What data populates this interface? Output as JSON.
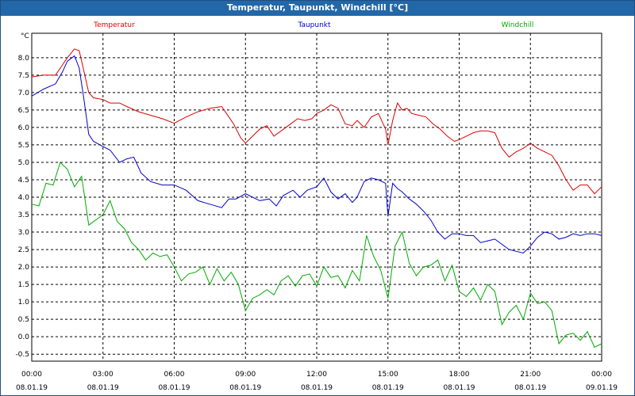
{
  "window": {
    "title": "Temperatur, Taupunkt, Windchill [°C]"
  },
  "chart_data": {
    "type": "line",
    "title": "Temperatur, Taupunkt, Windchill [°C]",
    "ylabel": "°C",
    "xlabel": "",
    "ylim": [
      -0.7,
      8.7
    ],
    "xlim_hours": [
      0,
      24
    ],
    "grid": true,
    "legend_position": "top",
    "y_ticks": [
      "8.0",
      "7.5",
      "7.0",
      "6.5",
      "6.0",
      "5.5",
      "5.0",
      "4.5",
      "4.0",
      "3.5",
      "3.0",
      "2.5",
      "2.0",
      "1.5",
      "1.0",
      "0.5",
      "0.0",
      "-0.5"
    ],
    "x_ticks": [
      {
        "time": "00:00",
        "date": "08.01.19"
      },
      {
        "time": "03:00",
        "date": "08.01.19"
      },
      {
        "time": "06:00",
        "date": "08.01.19"
      },
      {
        "time": "09:00",
        "date": "08.01.19"
      },
      {
        "time": "12:00",
        "date": "08.01.19"
      },
      {
        "time": "15:00",
        "date": "08.01.19"
      },
      {
        "time": "18:00",
        "date": "08.01.19"
      },
      {
        "time": "21:00",
        "date": "08.01.19"
      },
      {
        "time": "00:00",
        "date": "09.01.19"
      }
    ],
    "series": [
      {
        "name": "Temperatur",
        "color": "#dd0000",
        "x": [
          0,
          0.5,
          1,
          1.3,
          1.5,
          1.8,
          2,
          2.2,
          2.4,
          2.6,
          3,
          3.3,
          3.7,
          4,
          4.5,
          5,
          5.5,
          6,
          6.5,
          7,
          7.5,
          8,
          8.2,
          8.5,
          8.8,
          9,
          9.3,
          9.6,
          9.9,
          10.2,
          10.5,
          10.8,
          11,
          11.2,
          11.5,
          11.8,
          12,
          12.3,
          12.6,
          12.9,
          13.2,
          13.5,
          13.7,
          14,
          14.3,
          14.6,
          14.9,
          15,
          15.2,
          15.4,
          15.6,
          15.8,
          16,
          16.3,
          16.6,
          16.9,
          17.2,
          17.5,
          17.8,
          18,
          18.3,
          18.6,
          18.9,
          19.2,
          19.5,
          19.8,
          20.1,
          20.4,
          20.7,
          21,
          21.3,
          21.6,
          21.9,
          22.2,
          22.5,
          22.8,
          23.1,
          23.4,
          23.7,
          24
        ],
        "values": [
          7.45,
          7.5,
          7.5,
          7.8,
          8.0,
          8.25,
          8.2,
          7.6,
          7.0,
          6.85,
          6.8,
          6.7,
          6.7,
          6.6,
          6.45,
          6.35,
          6.25,
          6.12,
          6.3,
          6.45,
          6.55,
          6.6,
          6.4,
          6.1,
          5.7,
          5.55,
          5.75,
          5.95,
          6.05,
          5.75,
          5.9,
          6.05,
          6.15,
          6.25,
          6.2,
          6.25,
          6.4,
          6.5,
          6.65,
          6.55,
          6.1,
          6.05,
          6.2,
          6.0,
          6.3,
          6.4,
          5.95,
          5.5,
          6.2,
          6.7,
          6.5,
          6.55,
          6.4,
          6.35,
          6.3,
          6.1,
          5.95,
          5.75,
          5.6,
          5.65,
          5.75,
          5.85,
          5.9,
          5.9,
          5.85,
          5.4,
          5.15,
          5.3,
          5.4,
          5.55,
          5.4,
          5.3,
          5.2,
          4.9,
          4.5,
          4.2,
          4.35,
          4.35,
          4.1,
          4.3
        ]
      },
      {
        "name": "Taupunkt",
        "color": "#0000cc",
        "x": [
          0,
          0.5,
          1,
          1.3,
          1.5,
          1.8,
          2,
          2.2,
          2.4,
          2.6,
          3,
          3.3,
          3.7,
          4,
          4.3,
          4.6,
          5,
          5.5,
          6,
          6.5,
          7,
          7.5,
          8,
          8.3,
          8.6,
          9,
          9.3,
          9.6,
          10,
          10.3,
          10.6,
          11,
          11.3,
          11.6,
          12,
          12.3,
          12.6,
          12.9,
          13.2,
          13.5,
          13.7,
          14,
          14.3,
          14.6,
          14.9,
          15,
          15.2,
          15.4,
          15.6,
          15.9,
          16.2,
          16.5,
          16.8,
          17.1,
          17.4,
          17.7,
          18,
          18.3,
          18.6,
          18.9,
          19.2,
          19.5,
          19.8,
          20.1,
          20.4,
          20.7,
          21,
          21.3,
          21.6,
          21.9,
          22.2,
          22.5,
          22.8,
          23.1,
          23.4,
          23.7,
          24
        ],
        "values": [
          6.9,
          7.1,
          7.25,
          7.6,
          7.9,
          8.05,
          7.7,
          6.8,
          5.8,
          5.6,
          5.45,
          5.35,
          5.0,
          5.1,
          5.15,
          4.7,
          4.45,
          4.35,
          4.35,
          4.2,
          3.9,
          3.8,
          3.7,
          3.95,
          3.95,
          4.1,
          4.0,
          3.9,
          3.95,
          3.75,
          4.05,
          4.2,
          4.0,
          4.2,
          4.3,
          4.55,
          4.15,
          3.95,
          4.1,
          3.85,
          4.0,
          4.45,
          4.55,
          4.5,
          4.4,
          3.45,
          4.4,
          4.25,
          4.15,
          3.95,
          3.8,
          3.6,
          3.35,
          3.0,
          2.8,
          2.95,
          2.95,
          2.9,
          2.9,
          2.7,
          2.75,
          2.8,
          2.65,
          2.5,
          2.45,
          2.4,
          2.6,
          2.85,
          3.0,
          2.95,
          2.8,
          2.85,
          2.95,
          2.9,
          2.95,
          2.95,
          2.9
        ]
      },
      {
        "name": "Windchill",
        "color": "#00aa00",
        "x": [
          0,
          0.3,
          0.6,
          0.9,
          1.2,
          1.5,
          1.8,
          2.1,
          2.4,
          2.7,
          3,
          3.3,
          3.6,
          3.9,
          4.2,
          4.5,
          4.8,
          5.1,
          5.4,
          5.7,
          6,
          6.3,
          6.6,
          6.9,
          7.2,
          7.5,
          7.8,
          8.1,
          8.4,
          8.7,
          9,
          9.3,
          9.6,
          9.9,
          10.2,
          10.5,
          10.8,
          11.1,
          11.4,
          11.7,
          12,
          12.3,
          12.6,
          12.9,
          13.2,
          13.5,
          13.8,
          14.1,
          14.4,
          14.7,
          15,
          15.3,
          15.6,
          15.9,
          16.2,
          16.5,
          16.8,
          17.1,
          17.4,
          17.7,
          18,
          18.3,
          18.6,
          18.9,
          19.2,
          19.5,
          19.8,
          20.1,
          20.4,
          20.7,
          21,
          21.3,
          21.6,
          21.9,
          22.2,
          22.5,
          22.8,
          23.1,
          23.4,
          23.7,
          24
        ],
        "values": [
          3.8,
          3.75,
          4.4,
          4.35,
          5.0,
          4.8,
          4.3,
          4.6,
          3.2,
          3.35,
          3.5,
          3.9,
          3.3,
          3.1,
          2.7,
          2.5,
          2.2,
          2.4,
          2.3,
          2.35,
          2.0,
          1.6,
          1.8,
          1.85,
          2.0,
          1.5,
          1.95,
          1.6,
          1.85,
          1.5,
          0.75,
          1.1,
          1.2,
          1.35,
          1.2,
          1.6,
          1.75,
          1.45,
          1.75,
          1.8,
          1.45,
          2.0,
          1.7,
          1.75,
          1.4,
          1.9,
          1.6,
          2.9,
          2.3,
          1.9,
          1.1,
          2.6,
          3.0,
          2.1,
          1.75,
          2.0,
          2.05,
          2.2,
          1.6,
          2.05,
          1.3,
          1.15,
          1.4,
          1.05,
          1.5,
          1.3,
          0.35,
          0.7,
          0.9,
          0.5,
          1.25,
          0.95,
          1.0,
          0.75,
          -0.2,
          0.05,
          0.1,
          -0.1,
          0.15,
          -0.3,
          -0.2
        ]
      }
    ]
  }
}
